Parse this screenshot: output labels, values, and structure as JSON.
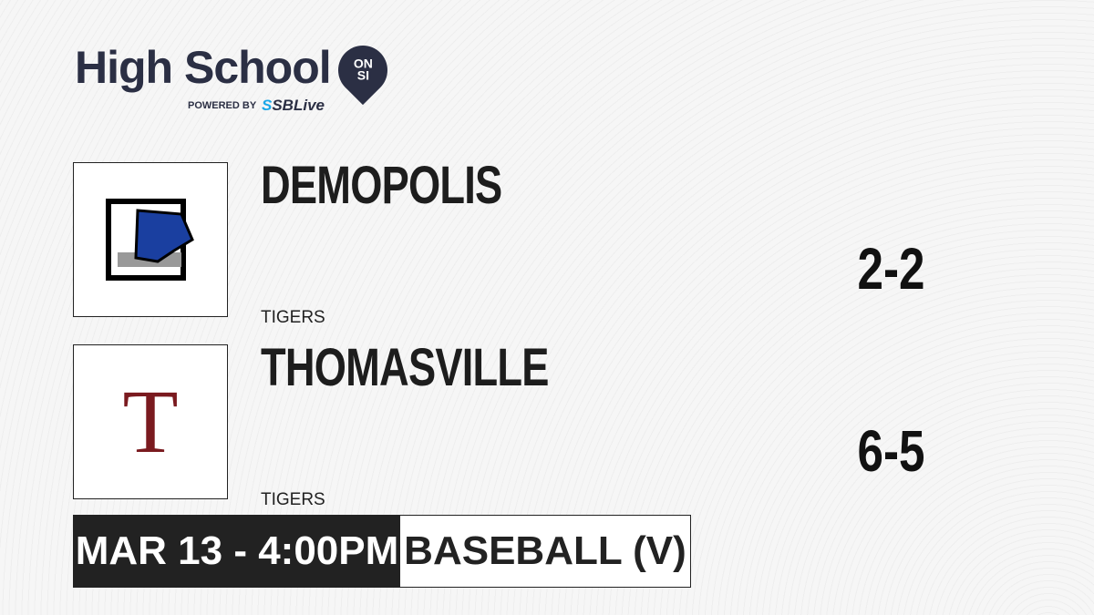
{
  "brand": {
    "title": "High School",
    "badge_top": "ON",
    "badge_bottom": "SI",
    "powered": "POWERED BY",
    "partner": "SBLive"
  },
  "teams": [
    {
      "name": "DEMOPOLIS",
      "mascot": "TIGERS",
      "record": "2-2",
      "logo_letter": "D",
      "logo_color": "#1a3fa0"
    },
    {
      "name": "THOMASVILLE",
      "mascot": "TIGERS",
      "record": "6-5",
      "logo_letter": "T",
      "logo_color": "#7a1a1f"
    }
  ],
  "game": {
    "datetime": "MAR 13 - 4:00PM",
    "sport": "BASEBALL (V)"
  }
}
